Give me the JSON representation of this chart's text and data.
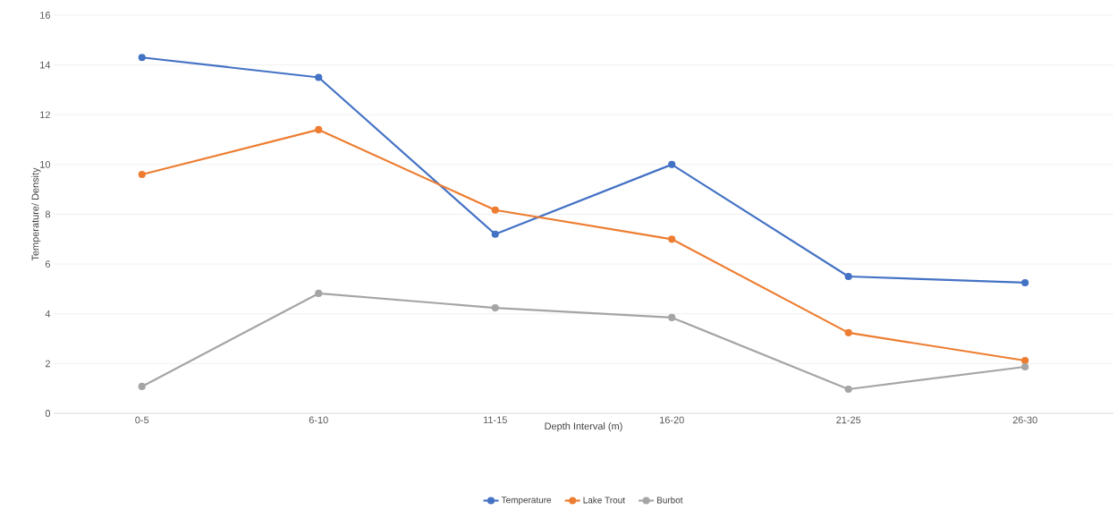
{
  "chart_data": {
    "type": "line",
    "xlabel": "Depth Interval (m)",
    "ylabel": "Temperature/ Density",
    "categories": [
      "0-5",
      "6-10",
      "11-15",
      "16-20",
      "21-25",
      "26-30"
    ],
    "series": [
      {
        "name": "Temperature",
        "color": "#4472c4",
        "values": [
          14.3,
          13.5,
          7.2,
          10.0,
          5.5,
          5.25
        ]
      },
      {
        "name": "Lake Trout",
        "color": "#ed7d31",
        "values": [
          9.6,
          11.4,
          8.17,
          7.0,
          3.24,
          2.12
        ]
      },
      {
        "name": "Burbot",
        "color": "#a5a5a5",
        "values": [
          1.08,
          4.82,
          4.24,
          3.85,
          0.97,
          1.87
        ]
      }
    ],
    "ylim": [
      0,
      16
    ],
    "yticks": [
      0,
      2,
      4,
      6,
      8,
      10,
      12,
      14,
      16
    ],
    "grid": "y",
    "legend": "bottom",
    "marker": "circle",
    "line_style": "solid"
  }
}
